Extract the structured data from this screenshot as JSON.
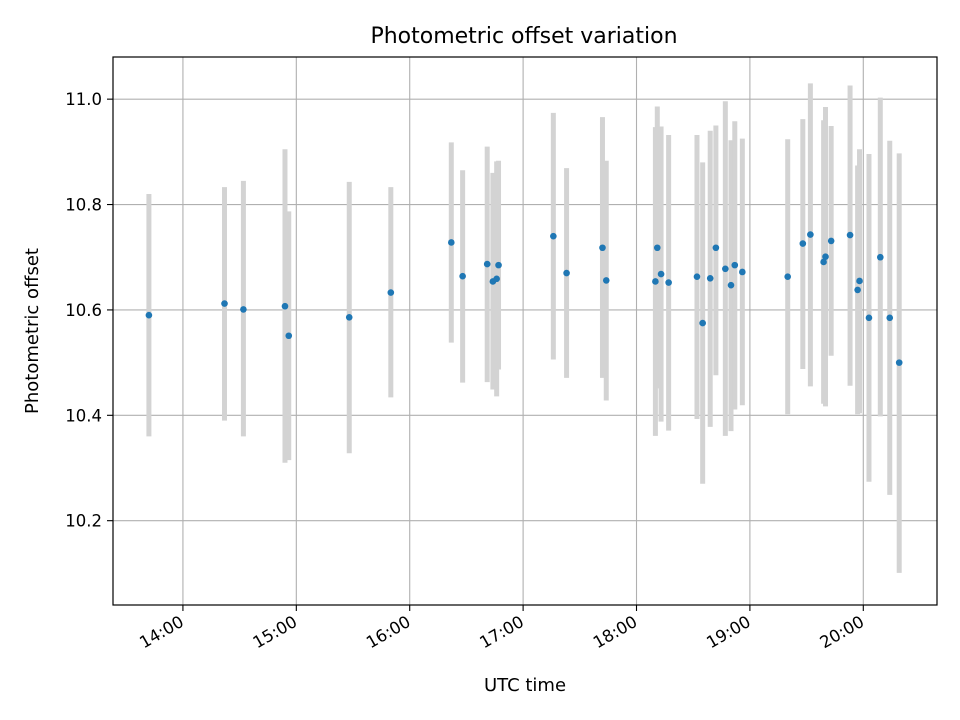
{
  "chart_data": {
    "type": "scatter",
    "title": "Photometric offset variation",
    "xlabel": "UTC time",
    "ylabel": "Photometric offset",
    "x_ticks": [
      "14:00",
      "15:00",
      "16:00",
      "17:00",
      "18:00",
      "19:00",
      "20:00"
    ],
    "y_ticks": [
      "10.2",
      "10.4",
      "10.6",
      "10.8",
      "11.0"
    ],
    "xlim": [
      "13:23",
      "20:39"
    ],
    "ylim": [
      10.04,
      11.08
    ],
    "grid": true,
    "legend": "none",
    "colors": {
      "point": "#1f77b4",
      "errorbar": "#d3d3d3",
      "grid": "#b0b0b0"
    },
    "points": [
      {
        "x": "13:42",
        "y": 10.59,
        "ylow": 10.36,
        "yhigh": 10.82
      },
      {
        "x": "14:22",
        "y": 10.612,
        "ylow": 10.39,
        "yhigh": 10.833
      },
      {
        "x": "14:32",
        "y": 10.601,
        "ylow": 10.36,
        "yhigh": 10.845
      },
      {
        "x": "14:54",
        "y": 10.607,
        "ylow": 10.31,
        "yhigh": 10.905
      },
      {
        "x": "14:56",
        "y": 10.551,
        "ylow": 10.315,
        "yhigh": 10.787
      },
      {
        "x": "15:28",
        "y": 10.586,
        "ylow": 10.328,
        "yhigh": 10.843
      },
      {
        "x": "15:50",
        "y": 10.633,
        "ylow": 10.434,
        "yhigh": 10.833
      },
      {
        "x": "16:22",
        "y": 10.728,
        "ylow": 10.538,
        "yhigh": 10.918
      },
      {
        "x": "16:28",
        "y": 10.664,
        "ylow": 10.462,
        "yhigh": 10.865
      },
      {
        "x": "16:41",
        "y": 10.687,
        "ylow": 10.463,
        "yhigh": 10.91
      },
      {
        "x": "16:44",
        "y": 10.654,
        "ylow": 10.449,
        "yhigh": 10.86
      },
      {
        "x": "16:46",
        "y": 10.659,
        "ylow": 10.436,
        "yhigh": 10.882
      },
      {
        "x": "16:47",
        "y": 10.685,
        "ylow": 10.487,
        "yhigh": 10.883
      },
      {
        "x": "17:16",
        "y": 10.74,
        "ylow": 10.506,
        "yhigh": 10.974
      },
      {
        "x": "17:23",
        "y": 10.67,
        "ylow": 10.471,
        "yhigh": 10.869
      },
      {
        "x": "17:42",
        "y": 10.718,
        "ylow": 10.471,
        "yhigh": 10.966
      },
      {
        "x": "17:44",
        "y": 10.656,
        "ylow": 10.428,
        "yhigh": 10.883
      },
      {
        "x": "18:10",
        "y": 10.654,
        "ylow": 10.361,
        "yhigh": 10.947
      },
      {
        "x": "18:11",
        "y": 10.718,
        "ylow": 10.451,
        "yhigh": 10.986
      },
      {
        "x": "18:13",
        "y": 10.668,
        "ylow": 10.388,
        "yhigh": 10.948
      },
      {
        "x": "18:17",
        "y": 10.652,
        "ylow": 10.371,
        "yhigh": 10.932
      },
      {
        "x": "18:32",
        "y": 10.663,
        "ylow": 10.393,
        "yhigh": 10.932
      },
      {
        "x": "18:35",
        "y": 10.575,
        "ylow": 10.27,
        "yhigh": 10.88
      },
      {
        "x": "18:39",
        "y": 10.66,
        "ylow": 10.378,
        "yhigh": 10.94
      },
      {
        "x": "18:42",
        "y": 10.718,
        "ylow": 10.476,
        "yhigh": 10.95
      },
      {
        "x": "18:47",
        "y": 10.678,
        "ylow": 10.361,
        "yhigh": 10.996
      },
      {
        "x": "18:50",
        "y": 10.647,
        "ylow": 10.37,
        "yhigh": 10.922
      },
      {
        "x": "18:52",
        "y": 10.685,
        "ylow": 10.411,
        "yhigh": 10.958
      },
      {
        "x": "18:56",
        "y": 10.672,
        "ylow": 10.419,
        "yhigh": 10.925
      },
      {
        "x": "19:20",
        "y": 10.663,
        "ylow": 10.402,
        "yhigh": 10.924
      },
      {
        "x": "19:28",
        "y": 10.726,
        "ylow": 10.488,
        "yhigh": 10.962
      },
      {
        "x": "19:32",
        "y": 10.743,
        "ylow": 10.455,
        "yhigh": 11.03
      },
      {
        "x": "19:39",
        "y": 10.691,
        "ylow": 10.422,
        "yhigh": 10.96
      },
      {
        "x": "19:40",
        "y": 10.701,
        "ylow": 10.417,
        "yhigh": 10.985
      },
      {
        "x": "19:43",
        "y": 10.731,
        "ylow": 10.513,
        "yhigh": 10.949
      },
      {
        "x": "19:53",
        "y": 10.742,
        "ylow": 10.456,
        "yhigh": 11.026
      },
      {
        "x": "19:57",
        "y": 10.638,
        "ylow": 10.402,
        "yhigh": 10.874
      },
      {
        "x": "19:58",
        "y": 10.655,
        "ylow": 10.404,
        "yhigh": 10.905
      },
      {
        "x": "20:03",
        "y": 10.585,
        "ylow": 10.274,
        "yhigh": 10.896
      },
      {
        "x": "20:09",
        "y": 10.7,
        "ylow": 10.398,
        "yhigh": 11.003
      },
      {
        "x": "20:14",
        "y": 10.585,
        "ylow": 10.249,
        "yhigh": 10.921
      },
      {
        "x": "20:19",
        "y": 10.5,
        "ylow": 10.101,
        "yhigh": 10.897
      }
    ]
  }
}
